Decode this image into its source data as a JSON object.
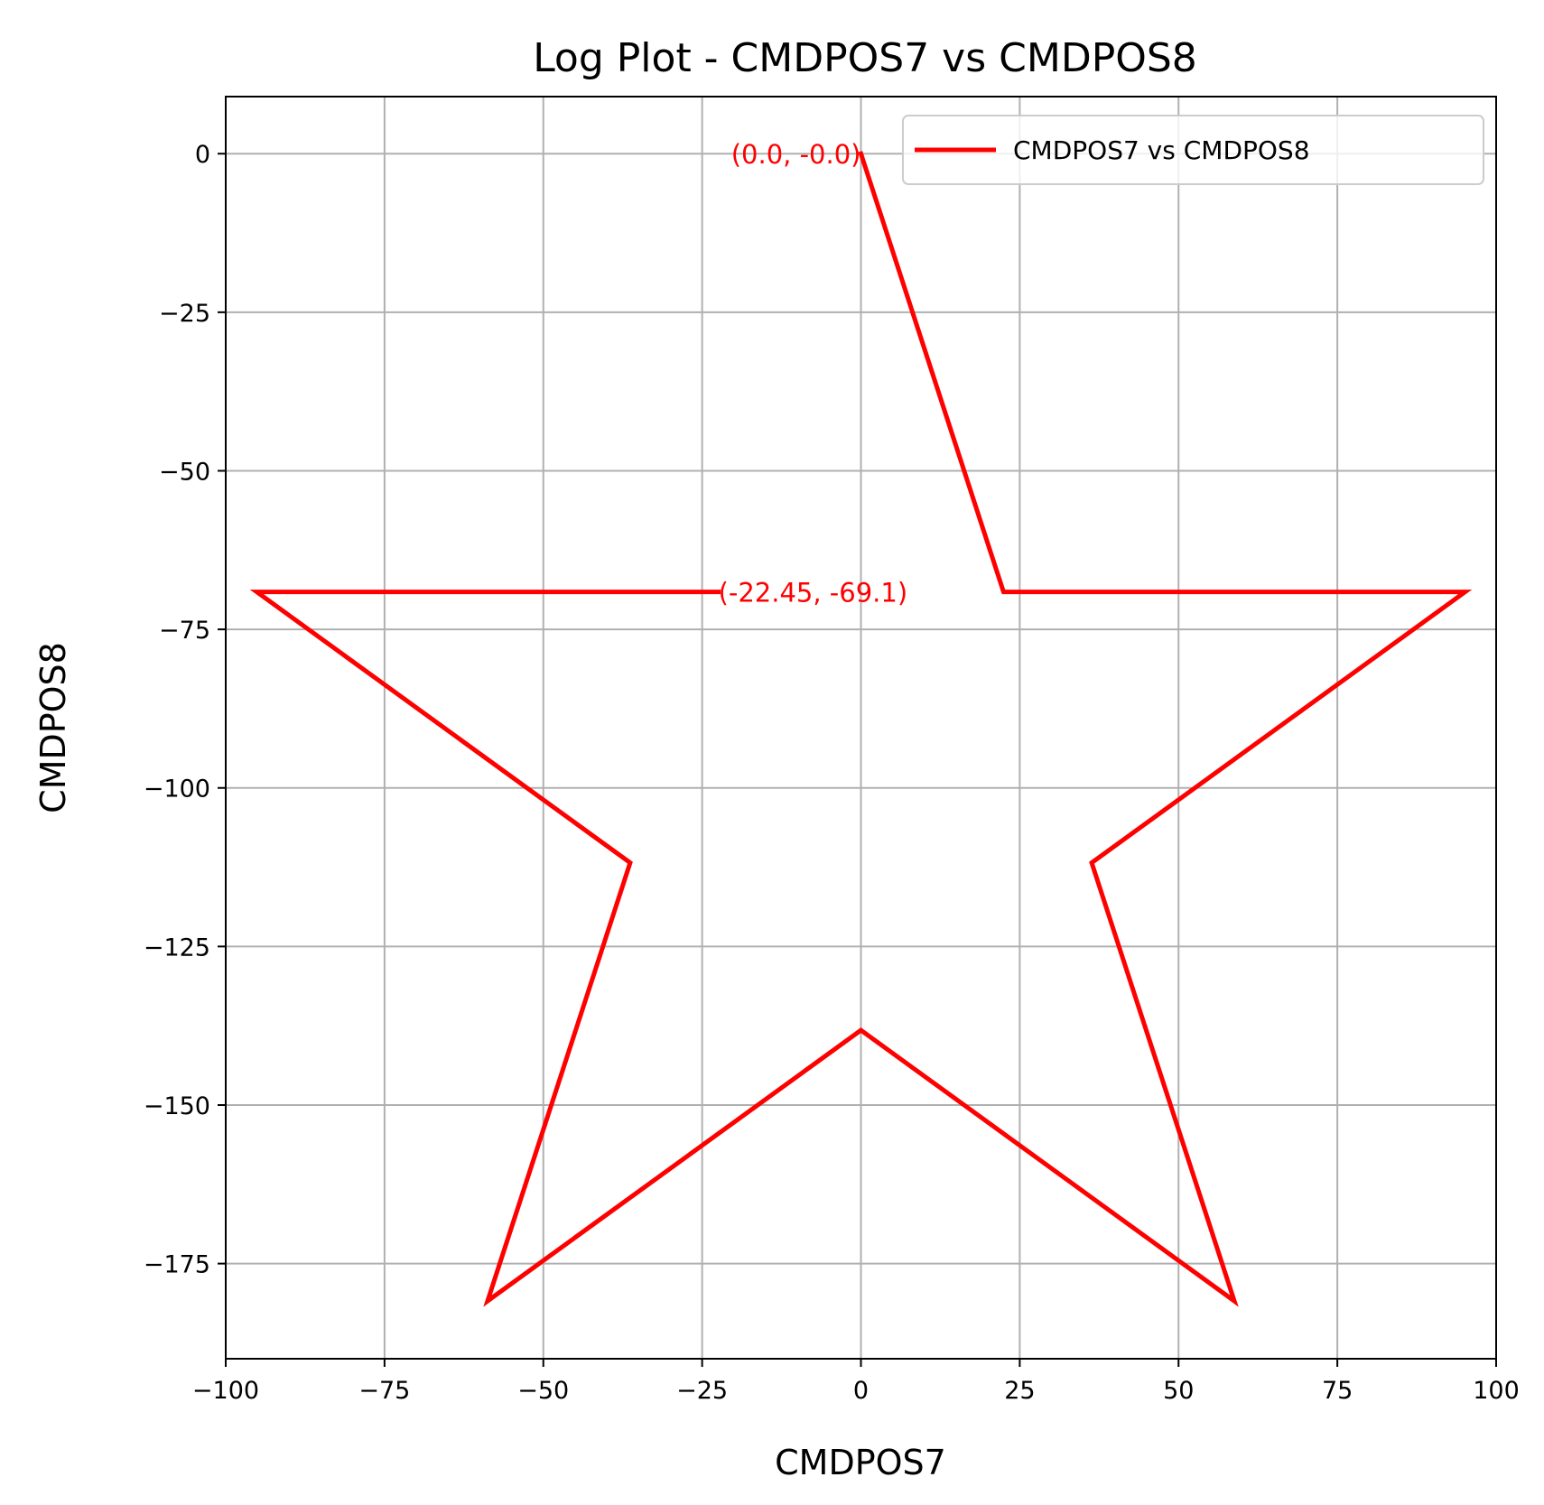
{
  "chart_data": {
    "type": "line",
    "title": "Log Plot - CMDPOS7 vs CMDPOS8",
    "xlabel": "CMDPOS7",
    "ylabel": "CMDPOS8",
    "xlim": [
      -100,
      100
    ],
    "ylim": [
      -190,
      9
    ],
    "xticks": [
      -100,
      -75,
      -50,
      -25,
      0,
      25,
      50,
      75,
      100
    ],
    "yticks": [
      0,
      -25,
      -50,
      -75,
      -100,
      -125,
      -150,
      -175
    ],
    "xtick_labels": [
      "−100",
      "−75",
      "−50",
      "−25",
      "0",
      "25",
      "50",
      "75",
      "100"
    ],
    "ytick_labels": [
      "0",
      "−25",
      "−50",
      "−75",
      "−100",
      "−125",
      "−150",
      "−175"
    ],
    "grid": true,
    "legend_position": "top-right",
    "series": [
      {
        "name": "CMDPOS7 vs CMDPOS8",
        "color": "#ff0000",
        "x": [
          0,
          22.45,
          95.11,
          36.33,
          58.78,
          0,
          -58.78,
          -36.33,
          -95.11,
          -22.45
        ],
        "y": [
          0,
          -69.1,
          -69.1,
          -111.8,
          -180.9,
          -138.2,
          -180.9,
          -111.8,
          -69.1,
          -69.1
        ]
      }
    ],
    "annotations": [
      {
        "text": "(0.0, -0.0)",
        "x": 0,
        "y": 0,
        "color": "#ff0000",
        "align": "end"
      },
      {
        "text": "(-22.45, -69.1)",
        "x": -22.45,
        "y": -69.1,
        "color": "#ff0000",
        "align": "start"
      }
    ]
  }
}
